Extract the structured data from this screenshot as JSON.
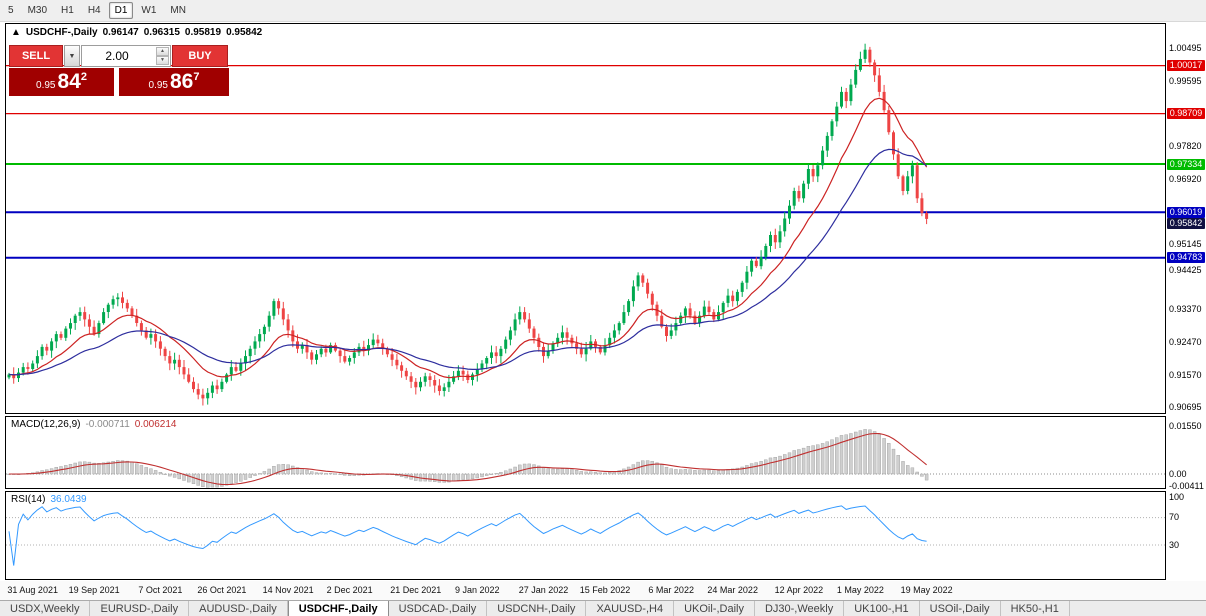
{
  "toolbar": {
    "timeframes": [
      "5",
      "M30",
      "H1",
      "H4",
      "D1",
      "W1",
      "MN"
    ],
    "active_timeframe": "D1"
  },
  "chart_header": {
    "arrow": "▲",
    "title": "USDCHF-,Daily",
    "open": "0.96147",
    "high": "0.96315",
    "low": "0.95819",
    "close": "0.95842"
  },
  "trade_panel": {
    "sell_label": "SELL",
    "buy_label": "BUY",
    "volume": "2.00",
    "dropdown_icon": "▼",
    "spin_up_icon": "▲",
    "spin_down_icon": "▼",
    "sell_price_prefix": "0.95",
    "sell_price_big": "84",
    "sell_price_sup": "2",
    "buy_price_prefix": "0.95",
    "buy_price_big": "86",
    "buy_price_sup": "7"
  },
  "macd_panel": {
    "label": "MACD(12,26,9)",
    "main_value": "-0.000711",
    "signal_value": "0.006214"
  },
  "rsi_panel": {
    "label": "RSI(14)",
    "value": "36.0439"
  },
  "tabs": {
    "items": [
      "USDX,Weekly",
      "EURUSD-,Daily",
      "AUDUSD-,Daily",
      "USDCHF-,Daily",
      "USDCAD-,Daily",
      "USDCNH-,Daily",
      "XAUUSD-,H4",
      "UKOil-,Daily",
      "DJ30-,Weekly",
      "UK100-,H1",
      "USOil-,Daily",
      "HK50-,H1"
    ],
    "active": "USDCHF-,Daily"
  },
  "chart_data": {
    "type": "candlestick",
    "title": "USDCHF-,Daily",
    "last_ohlc": {
      "open": 0.96147,
      "high": 0.96315,
      "low": 0.95819,
      "close": 0.95842
    },
    "price_range": [
      0.9055,
      1.0115
    ],
    "candle_colors": {
      "up": "#00a94f",
      "down": "#ee4444"
    },
    "closes": [
      0.916,
      0.915,
      0.9165,
      0.918,
      0.9175,
      0.919,
      0.921,
      0.9235,
      0.9225,
      0.925,
      0.927,
      0.926,
      0.9285,
      0.93,
      0.932,
      0.933,
      0.931,
      0.929,
      0.927,
      0.93,
      0.933,
      0.935,
      0.9365,
      0.937,
      0.9355,
      0.934,
      0.932,
      0.93,
      0.928,
      0.926,
      0.927,
      0.925,
      0.923,
      0.921,
      0.919,
      0.92,
      0.918,
      0.916,
      0.914,
      0.912,
      0.9105,
      0.9095,
      0.911,
      0.913,
      0.912,
      0.914,
      0.916,
      0.918,
      0.917,
      0.919,
      0.921,
      0.923,
      0.925,
      0.927,
      0.929,
      0.932,
      0.936,
      0.934,
      0.931,
      0.928,
      0.925,
      0.923,
      0.924,
      0.922,
      0.92,
      0.9215,
      0.923,
      0.922,
      0.924,
      0.9225,
      0.921,
      0.9195,
      0.9205,
      0.922,
      0.9235,
      0.9225,
      0.924,
      0.9255,
      0.9245,
      0.923,
      0.9215,
      0.92,
      0.9185,
      0.917,
      0.9155,
      0.914,
      0.9125,
      0.914,
      0.9155,
      0.9145,
      0.913,
      0.9115,
      0.9125,
      0.914,
      0.9155,
      0.917,
      0.916,
      0.9145,
      0.916,
      0.9175,
      0.919,
      0.9205,
      0.922,
      0.921,
      0.923,
      0.9255,
      0.928,
      0.931,
      0.933,
      0.931,
      0.9285,
      0.926,
      0.9235,
      0.921,
      0.9225,
      0.9245,
      0.926,
      0.9275,
      0.926,
      0.9245,
      0.923,
      0.9215,
      0.923,
      0.925,
      0.9235,
      0.922,
      0.924,
      0.926,
      0.928,
      0.93,
      0.933,
      0.936,
      0.94,
      0.943,
      0.941,
      0.938,
      0.935,
      0.932,
      0.929,
      0.9265,
      0.928,
      0.93,
      0.932,
      0.934,
      0.932,
      0.93,
      0.932,
      0.9345,
      0.933,
      0.931,
      0.933,
      0.9355,
      0.9375,
      0.936,
      0.9385,
      0.941,
      0.944,
      0.947,
      0.9455,
      0.948,
      0.951,
      0.954,
      0.952,
      0.955,
      0.9585,
      0.962,
      0.966,
      0.964,
      0.968,
      0.972,
      0.97,
      0.973,
      0.977,
      0.981,
      0.985,
      0.989,
      0.993,
      0.9905,
      0.995,
      0.999,
      1.002,
      1.0045,
      1.001,
      0.9975,
      0.993,
      0.988,
      0.982,
      0.976,
      0.97,
      0.966,
      0.97,
      0.973,
      0.964,
      0.96,
      0.9584
    ],
    "x_labels": [
      "31 Aug 2021",
      "19 Sep 2021",
      "7 Oct 2021",
      "26 Oct 2021",
      "14 Nov 2021",
      "2 Dec 2021",
      "21 Dec 2021",
      "9 Jan 2022",
      "27 Jan 2022",
      "15 Feb 2022",
      "6 Mar 2022",
      "24 Mar 2022",
      "12 Apr 2022",
      "1 May 2022",
      "19 May 2022"
    ],
    "x_label_bars": [
      5,
      18,
      32,
      45,
      59,
      72,
      86,
      99,
      113,
      126,
      140,
      153,
      167,
      180,
      194
    ],
    "y_ticks": [
      1.00495,
      0.99595,
      0.9782,
      0.9692,
      0.95145,
      0.94425,
      0.9337,
      0.9247,
      0.9157,
      0.90695
    ],
    "hlines": [
      {
        "price": 1.00017,
        "label": "1.00017",
        "color": "#e00000",
        "width": 1.2
      },
      {
        "price": 0.98709,
        "label": "0.98709",
        "color": "#e00000",
        "width": 1.2
      },
      {
        "price": 0.97334,
        "label": "0.97334",
        "color": "#00bb00",
        "width": 2
      },
      {
        "price": 0.96019,
        "label": "0.96019",
        "color": "#0000c0",
        "width": 2
      },
      {
        "price": 0.94783,
        "label": "0.94783",
        "color": "#0000c0",
        "width": 2
      }
    ],
    "current_price": {
      "value": 0.95842,
      "label": "0.95842",
      "color": "#101042"
    },
    "moving_averages": [
      {
        "period": 13,
        "color": "#cc2222"
      },
      {
        "period": 30,
        "color": "#2e2e9e"
      }
    ],
    "indicators": {
      "macd": {
        "fast": 12,
        "slow": 26,
        "signal": 9,
        "hist_color": "#cfcfcf",
        "signal_color": "#c03030",
        "axis_ticks": [
          {
            "v": 0.0155,
            "label": "0.01550"
          },
          {
            "v": 0,
            "label": "0.00"
          },
          {
            "v": -0.00411,
            "label": "-0.00411"
          }
        ]
      },
      "rsi": {
        "period": 14,
        "line_color": "#3399ff",
        "levels": [
          {
            "v": 100,
            "label": "100",
            "line": false
          },
          {
            "v": 70,
            "label": "70",
            "line": true
          },
          {
            "v": 30,
            "label": "30",
            "line": true
          }
        ]
      }
    }
  }
}
